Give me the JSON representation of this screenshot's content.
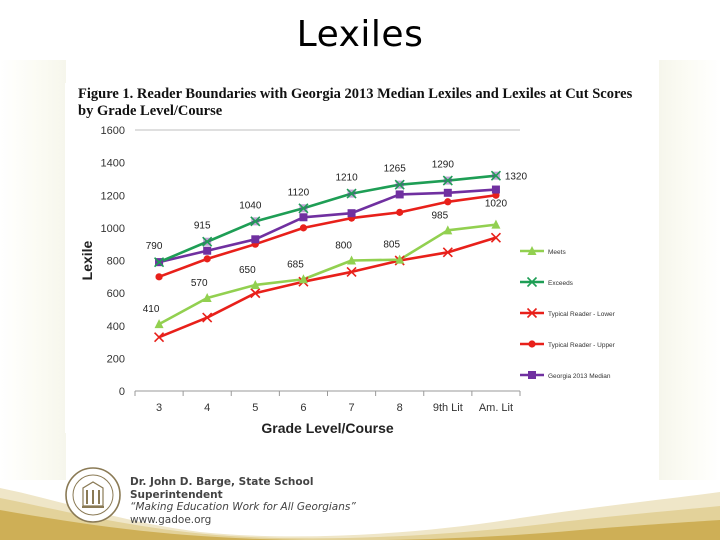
{
  "slide": {
    "title": "Lexiles"
  },
  "figure": {
    "caption_line1": "Figure 1.  Reader Boundaries with Georgia 2013 Median Lexiles and Lexiles at Cut Scores",
    "caption_line2": "by Grade Level/Course"
  },
  "footer": {
    "line1": "Dr. John D. Barge, State School",
    "line2": "Superintendent",
    "line3": "“Making Education Work for All Georgians”",
    "line4": "www.gadoe.org"
  },
  "colors": {
    "meets": "#92d050",
    "exceeds": "#1e9e55",
    "typical_lower": "#e8201a",
    "typical_upper": "#e8201a",
    "median": "#7030a0"
  },
  "chart_data": {
    "type": "line",
    "ylabel": "Lexile",
    "xlabel": "Grade Level/Course",
    "categories": [
      "3",
      "4",
      "5",
      "6",
      "7",
      "8",
      "9th Lit",
      "Am. Lit"
    ],
    "ylim": [
      0,
      1600
    ],
    "yticks": [
      0,
      200,
      400,
      600,
      800,
      1000,
      1200,
      1400,
      1600
    ],
    "grid": "horizontal at 1600 only",
    "legend_position": "right",
    "series": [
      {
        "name": "Meets",
        "key": "meets",
        "marker": "triangle",
        "values": [
          410,
          570,
          650,
          685,
          800,
          805,
          985,
          1020
        ],
        "labels": [
          "410",
          "570",
          "650",
          "685",
          "800",
          "805",
          "985",
          "1020"
        ]
      },
      {
        "name": "Exceeds",
        "key": "exceeds",
        "marker": "x",
        "values": [
          790,
          915,
          1040,
          1120,
          1210,
          1265,
          1290,
          1320
        ],
        "labels": [
          "790",
          "915",
          "1040",
          "1120",
          "1210",
          "1265",
          "1290",
          "1320"
        ]
      },
      {
        "name": "Typical Reader - Lower",
        "key": "typical_lower",
        "marker": "x",
        "values": [
          330,
          450,
          600,
          670,
          730,
          800,
          850,
          940
        ],
        "labels": []
      },
      {
        "name": "Typical Reader - Upper",
        "key": "typical_upper",
        "marker": "circle",
        "values": [
          700,
          810,
          900,
          1000,
          1060,
          1095,
          1160,
          1200
        ],
        "labels": []
      },
      {
        "name": "Georgia 2013 Median",
        "key": "median",
        "marker": "square",
        "values": [
          790,
          860,
          930,
          1065,
          1090,
          1205,
          1215,
          1235
        ],
        "labels": []
      }
    ]
  }
}
